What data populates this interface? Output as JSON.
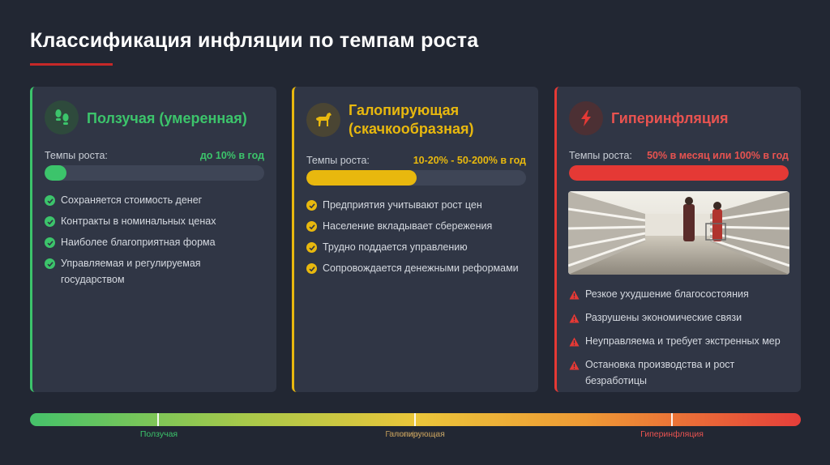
{
  "title": "Классификация инфляции по темпам роста",
  "colors": {
    "creeping": "#3cc46b",
    "galloping": "#e8b80e",
    "hyper": "#e53935",
    "background": "#222733"
  },
  "cards": [
    {
      "title": "Ползучая (умеренная)",
      "icon": "footprints-icon",
      "rate_label": "Темпы роста:",
      "rate_value": "до 10%  в год",
      "level": 0.1,
      "items": [
        "Сохраняется стоимость денег",
        "Контракты в номинальных ценах",
        "Наиболее благоприятная форма",
        "Управляемая и регулируемая государством"
      ]
    },
    {
      "title": "Галопирующая (скачкообразная)",
      "icon": "horse-icon",
      "rate_label": "Темпы роста:",
      "rate_value": "10-20% - 50-200%  в год",
      "level": 0.5,
      "items": [
        "Предприятия учитывают рост цен",
        "Население вкладывает сбережения",
        "Трудно поддается управлению",
        "Сопровождается денежными реформами"
      ]
    },
    {
      "title": "Гиперинфляция",
      "icon": "lightning-icon",
      "rate_label": "Темпы роста:",
      "rate_value": "50%  в месяц или 100%  в год",
      "level": 1.0,
      "items": [
        "Резкое ухудшение благосостояния",
        "Разрушены экономические связи",
        "Неуправляема и требует экстренных мер",
        "Остановка производства и рост безработицы"
      ]
    }
  ],
  "scale": {
    "labels": [
      "Ползучая",
      "Галопирующая",
      "Гиперинфляция"
    ],
    "overlay_label": "Несинфляция"
  }
}
